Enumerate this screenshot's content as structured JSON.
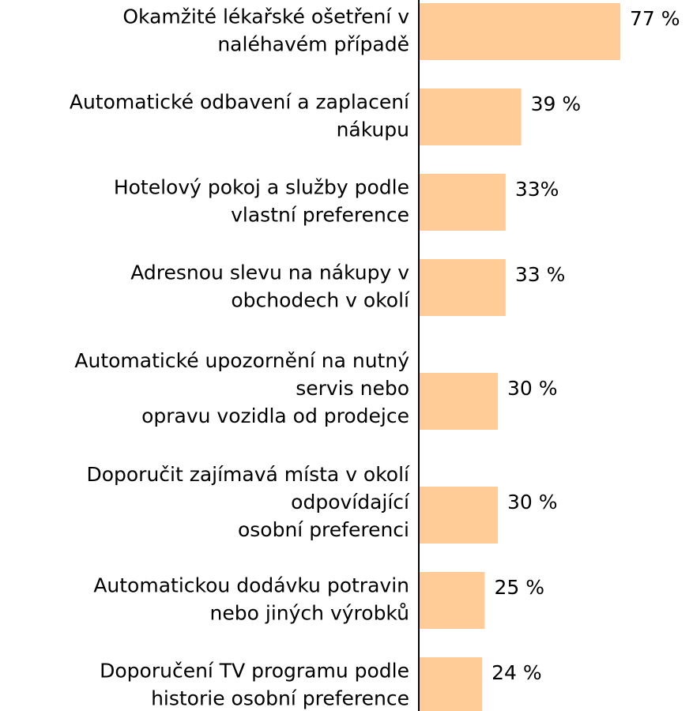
{
  "chart_data": {
    "type": "barh",
    "categories": [
      [
        "Okamžité lékařské ošetření v",
        "naléhavém případě"
      ],
      [
        "Automatické odbavení a zaplacení",
        "nákupu"
      ],
      [
        "Hotelový pokoj a služby podle",
        "vlastní preference"
      ],
      [
        "Adresnou slevu na nákupy v",
        "obchodech v okolí"
      ],
      [
        "Automatické upozornění na nutný",
        "servis nebo",
        "opravu vozidla  od prodejce"
      ],
      [
        "Doporučit zajímavá místa v okolí",
        "odpovídající",
        "osobní preferenci"
      ],
      [
        "Automatickou dodávku potravin",
        "nebo jiných výrobků"
      ],
      [
        "Doporučení TV programu podle",
        "historie osobní preference"
      ]
    ],
    "values": [
      77,
      39,
      33,
      33,
      30,
      30,
      25,
      24
    ],
    "value_labels": [
      "77 %",
      "39 %",
      "33%",
      "33 %",
      "30 %",
      "30 %",
      "25 %",
      "24 %"
    ],
    "color": "#ffcb97"
  }
}
